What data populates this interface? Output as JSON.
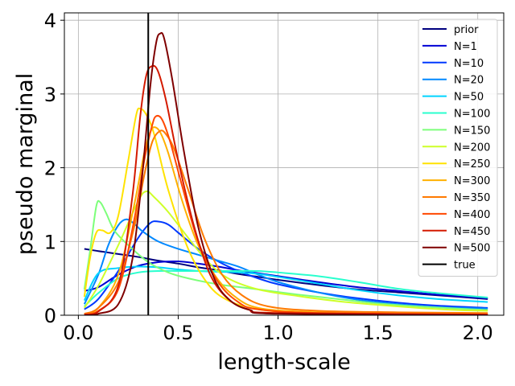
{
  "chart_data": {
    "type": "line",
    "title": "",
    "xlabel": "length-scale",
    "ylabel": "pseudo marginal",
    "xlim": [
      -0.07,
      2.13
    ],
    "ylim": [
      0,
      4.1
    ],
    "xticks": [
      0.0,
      0.5,
      1.0,
      1.5,
      2.0
    ],
    "xtick_labels": [
      "0.0",
      "0.5",
      "1.0",
      "1.5",
      "2.0"
    ],
    "yticks": [
      0,
      1,
      2,
      3,
      4
    ],
    "ytick_labels": [
      "0",
      "1",
      "2",
      "3",
      "4"
    ],
    "grid": true,
    "legend_position": "top-right",
    "true_value": 0.35,
    "true_label": "true",
    "true_color": "#000000",
    "series": [
      {
        "name": "prior",
        "color": "#00007f",
        "points": [
          [
            0.03,
            0.9
          ],
          [
            0.1,
            0.87
          ],
          [
            0.2,
            0.83
          ],
          [
            0.3,
            0.79
          ],
          [
            0.4,
            0.74
          ],
          [
            0.5,
            0.7
          ],
          [
            0.6,
            0.65
          ],
          [
            0.7,
            0.61
          ],
          [
            0.8,
            0.56
          ],
          [
            0.9,
            0.52
          ],
          [
            1.0,
            0.48
          ],
          [
            1.2,
            0.41
          ],
          [
            1.4,
            0.35
          ],
          [
            1.6,
            0.31
          ],
          [
            1.8,
            0.27
          ],
          [
            2.05,
            0.22
          ]
        ]
      },
      {
        "name": "N=1",
        "color": "#0000d4",
        "points": [
          [
            0.03,
            0.33
          ],
          [
            0.1,
            0.38
          ],
          [
            0.2,
            0.55
          ],
          [
            0.3,
            0.67
          ],
          [
            0.4,
            0.72
          ],
          [
            0.5,
            0.73
          ],
          [
            0.6,
            0.7
          ],
          [
            0.7,
            0.66
          ],
          [
            0.8,
            0.61
          ],
          [
            0.9,
            0.57
          ],
          [
            1.0,
            0.53
          ],
          [
            1.2,
            0.45
          ],
          [
            1.4,
            0.38
          ],
          [
            1.6,
            0.33
          ],
          [
            1.8,
            0.28
          ],
          [
            2.05,
            0.23
          ]
        ]
      },
      {
        "name": "N=10",
        "color": "#0038ff",
        "points": [
          [
            0.03,
            0.08
          ],
          [
            0.1,
            0.22
          ],
          [
            0.2,
            0.6
          ],
          [
            0.3,
            1.05
          ],
          [
            0.36,
            1.25
          ],
          [
            0.4,
            1.27
          ],
          [
            0.45,
            1.23
          ],
          [
            0.5,
            1.12
          ],
          [
            0.6,
            0.9
          ],
          [
            0.7,
            0.73
          ],
          [
            0.8,
            0.6
          ],
          [
            0.9,
            0.5
          ],
          [
            1.0,
            0.42
          ],
          [
            1.2,
            0.31
          ],
          [
            1.4,
            0.23
          ],
          [
            1.6,
            0.17
          ],
          [
            1.8,
            0.13
          ],
          [
            2.05,
            0.1
          ]
        ]
      },
      {
        "name": "N=20",
        "color": "#0088ff",
        "points": [
          [
            0.03,
            0.15
          ],
          [
            0.1,
            0.55
          ],
          [
            0.15,
            0.95
          ],
          [
            0.2,
            1.22
          ],
          [
            0.24,
            1.3
          ],
          [
            0.28,
            1.24
          ],
          [
            0.32,
            1.14
          ],
          [
            0.4,
            1.0
          ],
          [
            0.5,
            0.9
          ],
          [
            0.6,
            0.82
          ],
          [
            0.7,
            0.74
          ],
          [
            0.8,
            0.66
          ],
          [
            0.9,
            0.55
          ],
          [
            1.0,
            0.45
          ],
          [
            1.2,
            0.31
          ],
          [
            1.4,
            0.21
          ],
          [
            1.6,
            0.15
          ],
          [
            1.8,
            0.11
          ],
          [
            2.05,
            0.09
          ]
        ]
      },
      {
        "name": "N=50",
        "color": "#00d4ff",
        "points": [
          [
            0.03,
            0.2
          ],
          [
            0.1,
            0.57
          ],
          [
            0.2,
            0.64
          ],
          [
            0.3,
            0.66
          ],
          [
            0.4,
            0.65
          ],
          [
            0.5,
            0.62
          ],
          [
            0.6,
            0.6
          ],
          [
            0.7,
            0.59
          ],
          [
            0.8,
            0.58
          ],
          [
            0.9,
            0.56
          ],
          [
            1.0,
            0.52
          ],
          [
            1.2,
            0.43
          ],
          [
            1.4,
            0.34
          ],
          [
            1.6,
            0.27
          ],
          [
            1.8,
            0.22
          ],
          [
            2.05,
            0.18
          ]
        ]
      },
      {
        "name": "N=100",
        "color": "#29ffce",
        "points": [
          [
            0.03,
            0.12
          ],
          [
            0.1,
            0.3
          ],
          [
            0.2,
            0.5
          ],
          [
            0.3,
            0.58
          ],
          [
            0.4,
            0.6
          ],
          [
            0.5,
            0.6
          ],
          [
            0.6,
            0.6
          ],
          [
            0.7,
            0.6
          ],
          [
            0.8,
            0.6
          ],
          [
            0.9,
            0.6
          ],
          [
            1.0,
            0.58
          ],
          [
            1.2,
            0.53
          ],
          [
            1.4,
            0.45
          ],
          [
            1.6,
            0.36
          ],
          [
            1.8,
            0.3
          ],
          [
            2.05,
            0.24
          ]
        ]
      },
      {
        "name": "N=150",
        "color": "#7dff7a",
        "points": [
          [
            0.03,
            0.35
          ],
          [
            0.06,
            0.9
          ],
          [
            0.09,
            1.48
          ],
          [
            0.11,
            1.53
          ],
          [
            0.14,
            1.38
          ],
          [
            0.18,
            1.15
          ],
          [
            0.25,
            0.95
          ],
          [
            0.35,
            0.72
          ],
          [
            0.45,
            0.58
          ],
          [
            0.55,
            0.5
          ],
          [
            0.7,
            0.42
          ],
          [
            0.9,
            0.35
          ],
          [
            1.1,
            0.28
          ],
          [
            1.3,
            0.22
          ],
          [
            1.5,
            0.16
          ],
          [
            1.7,
            0.12
          ],
          [
            1.9,
            0.09
          ],
          [
            2.05,
            0.07
          ]
        ]
      },
      {
        "name": "N=200",
        "color": "#ceff29",
        "points": [
          [
            0.03,
            0.1
          ],
          [
            0.1,
            0.4
          ],
          [
            0.2,
            0.95
          ],
          [
            0.3,
            1.55
          ],
          [
            0.34,
            1.68
          ],
          [
            0.38,
            1.6
          ],
          [
            0.45,
            1.4
          ],
          [
            0.55,
            1.05
          ],
          [
            0.65,
            0.72
          ],
          [
            0.75,
            0.5
          ],
          [
            0.9,
            0.35
          ],
          [
            1.1,
            0.26
          ],
          [
            1.3,
            0.19
          ],
          [
            1.5,
            0.14
          ],
          [
            1.7,
            0.1
          ],
          [
            1.9,
            0.07
          ],
          [
            2.05,
            0.06
          ]
        ]
      },
      {
        "name": "N=250",
        "color": "#ffe200",
        "points": [
          [
            0.03,
            0.25
          ],
          [
            0.06,
            0.8
          ],
          [
            0.09,
            1.12
          ],
          [
            0.12,
            1.15
          ],
          [
            0.16,
            1.12
          ],
          [
            0.2,
            1.35
          ],
          [
            0.25,
            2.1
          ],
          [
            0.29,
            2.72
          ],
          [
            0.31,
            2.8
          ],
          [
            0.34,
            2.72
          ],
          [
            0.38,
            2.45
          ],
          [
            0.45,
            1.7
          ],
          [
            0.55,
            0.9
          ],
          [
            0.65,
            0.42
          ],
          [
            0.75,
            0.2
          ],
          [
            0.9,
            0.08
          ],
          [
            1.1,
            0.04
          ],
          [
            1.5,
            0.02
          ],
          [
            2.05,
            0.01
          ]
        ]
      },
      {
        "name": "N=300",
        "color": "#ffb000",
        "points": [
          [
            0.03,
            0.02
          ],
          [
            0.1,
            0.1
          ],
          [
            0.2,
            0.55
          ],
          [
            0.28,
            1.5
          ],
          [
            0.33,
            2.2
          ],
          [
            0.36,
            2.48
          ],
          [
            0.38,
            2.55
          ],
          [
            0.41,
            2.48
          ],
          [
            0.45,
            2.2
          ],
          [
            0.52,
            1.55
          ],
          [
            0.6,
            0.95
          ],
          [
            0.7,
            0.48
          ],
          [
            0.8,
            0.22
          ],
          [
            0.9,
            0.1
          ],
          [
            1.1,
            0.05
          ],
          [
            1.5,
            0.02
          ],
          [
            2.05,
            0.01
          ]
        ]
      },
      {
        "name": "N=350",
        "color": "#ff7a00",
        "points": [
          [
            0.03,
            0.02
          ],
          [
            0.1,
            0.1
          ],
          [
            0.2,
            0.45
          ],
          [
            0.28,
            1.2
          ],
          [
            0.33,
            1.9
          ],
          [
            0.37,
            2.35
          ],
          [
            0.41,
            2.5
          ],
          [
            0.44,
            2.45
          ],
          [
            0.48,
            2.25
          ],
          [
            0.55,
            1.7
          ],
          [
            0.63,
            1.05
          ],
          [
            0.72,
            0.55
          ],
          [
            0.82,
            0.27
          ],
          [
            0.95,
            0.12
          ],
          [
            1.2,
            0.06
          ],
          [
            1.6,
            0.04
          ],
          [
            2.05,
            0.03
          ]
        ]
      },
      {
        "name": "N=400",
        "color": "#ff4800",
        "points": [
          [
            0.03,
            0.01
          ],
          [
            0.1,
            0.06
          ],
          [
            0.2,
            0.35
          ],
          [
            0.28,
            1.3
          ],
          [
            0.33,
            2.1
          ],
          [
            0.37,
            2.58
          ],
          [
            0.39,
            2.7
          ],
          [
            0.42,
            2.65
          ],
          [
            0.46,
            2.35
          ],
          [
            0.52,
            1.75
          ],
          [
            0.6,
            1.0
          ],
          [
            0.7,
            0.45
          ],
          [
            0.8,
            0.18
          ],
          [
            0.9,
            0.08
          ],
          [
            1.2,
            0.03
          ],
          [
            2.05,
            0.01
          ]
        ]
      },
      {
        "name": "N=450",
        "color": "#d41a00",
        "points": [
          [
            0.03,
            0.01
          ],
          [
            0.1,
            0.05
          ],
          [
            0.2,
            0.4
          ],
          [
            0.27,
            1.6
          ],
          [
            0.31,
            2.7
          ],
          [
            0.34,
            3.25
          ],
          [
            0.37,
            3.38
          ],
          [
            0.4,
            3.3
          ],
          [
            0.44,
            2.9
          ],
          [
            0.5,
            2.1
          ],
          [
            0.58,
            1.2
          ],
          [
            0.66,
            0.55
          ],
          [
            0.75,
            0.22
          ],
          [
            0.85,
            0.08
          ],
          [
            1.0,
            0.03
          ],
          [
            2.05,
            0.01
          ]
        ]
      },
      {
        "name": "N=500",
        "color": "#7f0000",
        "points": [
          [
            0.03,
            0.0
          ],
          [
            0.1,
            0.02
          ],
          [
            0.2,
            0.15
          ],
          [
            0.27,
            0.75
          ],
          [
            0.32,
            1.9
          ],
          [
            0.36,
            3.1
          ],
          [
            0.39,
            3.7
          ],
          [
            0.41,
            3.82
          ],
          [
            0.43,
            3.75
          ],
          [
            0.47,
            3.2
          ],
          [
            0.53,
            2.2
          ],
          [
            0.6,
            1.2
          ],
          [
            0.68,
            0.5
          ],
          [
            0.76,
            0.2
          ],
          [
            0.86,
            0.07
          ],
          [
            1.0,
            0.02
          ],
          [
            2.05,
            0.0
          ]
        ]
      }
    ]
  }
}
